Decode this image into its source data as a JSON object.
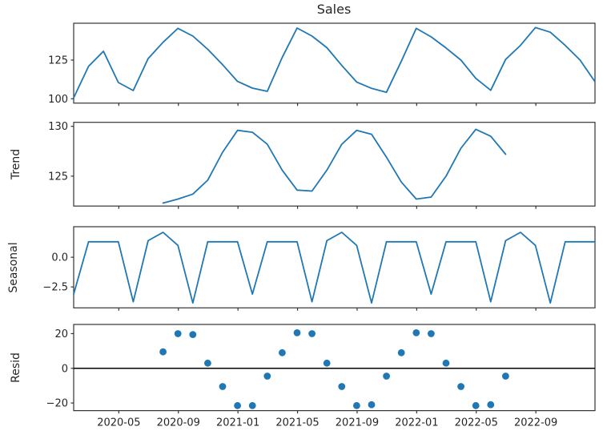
{
  "title": "Sales",
  "style": {
    "line_color": "#1f77b4",
    "scatter_color": "#1f77b4",
    "zero_line_color": "#000000",
    "spine_color": "#333333",
    "text_color": "#262626"
  },
  "chart_data": {
    "type": "line",
    "description": "Additive seasonal decomposition: observed Sales, Trend, Seasonal, Resid panels sharing a monthly time axis",
    "x_axis": {
      "xlim": [
        0,
        35
      ],
      "unit": "month index (0 = 2020-01, month-end points)",
      "start_month": "2020-01",
      "end_month": "2022-12",
      "freq": "monthly",
      "n_points": 36,
      "tick_positions": [
        3.03,
        7.03,
        11.03,
        15.03,
        19.03,
        23.03,
        27.03,
        31.03
      ],
      "tick_labels": [
        "2020-05",
        "2020-09",
        "2021-01",
        "2021-05",
        "2021-09",
        "2022-01",
        "2022-05",
        "2022-09"
      ]
    },
    "panels": [
      {
        "name": "observed",
        "ylabel": "",
        "type": "line",
        "x_start": 0,
        "ylim": [
          97.2,
          148.8
        ],
        "yticks": [
          {
            "value": 125,
            "label": "125"
          },
          {
            "value": 100,
            "label": "100"
          }
        ],
        "values": [
          100.6,
          121.0,
          130.7,
          110.5,
          105.3,
          126.0,
          136.5,
          145.5,
          140.5,
          132.0,
          122.0,
          111.2,
          106.9,
          104.8,
          126.7,
          145.7,
          140.5,
          133.0,
          121.5,
          110.8,
          106.7,
          104.2,
          124.3,
          145.5,
          140.0,
          132.8,
          125.0,
          113.2,
          105.5,
          125.4,
          134.5,
          146.0,
          143.0,
          134.5,
          125.0,
          111.0
        ]
      },
      {
        "name": "trend",
        "ylabel": "Trend",
        "type": "line",
        "x_start": 6,
        "ylim": [
          122.0,
          130.4
        ],
        "yticks": [
          {
            "value": 130,
            "label": "130"
          },
          {
            "value": 125,
            "label": "125"
          }
        ],
        "values": [
          122.3,
          122.7,
          123.2,
          124.6,
          127.4,
          129.6,
          129.4,
          128.2,
          125.6,
          123.6,
          123.5,
          125.6,
          128.2,
          129.6,
          129.2,
          126.9,
          124.4,
          122.7,
          122.9,
          125.0,
          127.8,
          129.7,
          129.0,
          127.2
        ]
      },
      {
        "name": "seasonal",
        "ylabel": "Seasonal",
        "type": "line",
        "x_start": 0,
        "ylim": [
          -4.26,
          2.57
        ],
        "yticks": [
          {
            "value": 0,
            "label": "0.0"
          },
          {
            "value": -2.5,
            "label": "−2.5"
          }
        ],
        "values": [
          -3.1,
          1.3,
          1.3,
          1.3,
          -3.75,
          1.4,
          2.1,
          1.0,
          -3.85,
          1.3,
          1.3,
          1.3,
          -3.1,
          1.3,
          1.3,
          1.3,
          -3.75,
          1.4,
          2.1,
          1.0,
          -3.85,
          1.3,
          1.3,
          1.3,
          -3.1,
          1.3,
          1.3,
          1.3,
          -3.75,
          1.4,
          2.1,
          1.0,
          -3.85,
          1.3,
          1.3,
          1.3
        ]
      },
      {
        "name": "resid",
        "ylabel": "Resid",
        "type": "scatter",
        "x_start": 6,
        "zero_line": true,
        "ylim": [
          -24.4,
          25.3
        ],
        "yticks": [
          {
            "value": 20,
            "label": "20"
          },
          {
            "value": 0,
            "label": "0"
          },
          {
            "value": -20,
            "label": "−20"
          }
        ],
        "values": [
          9.5,
          20.0,
          19.5,
          3.0,
          -10.5,
          -21.5,
          -21.5,
          -4.5,
          9.0,
          20.5,
          20.0,
          3.0,
          -10.5,
          -21.5,
          -21.0,
          -4.5,
          9.0,
          20.5,
          20.0,
          3.0,
          -10.5,
          -21.5,
          -21.0,
          -4.5
        ]
      }
    ]
  }
}
